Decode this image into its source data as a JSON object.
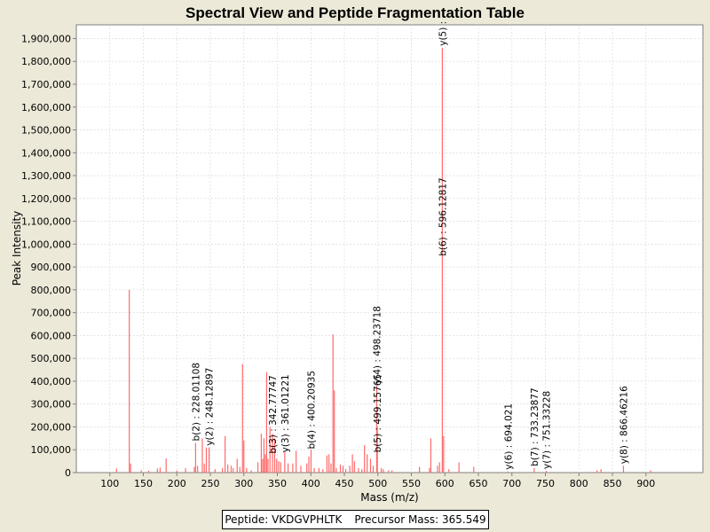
{
  "chart_data": {
    "type": "bar",
    "title": "Spectral View and Peptide Fragmentation Table",
    "xlabel": "Mass (m/z)",
    "ylabel": "Peak Intensity",
    "xlim": [
      50,
      985
    ],
    "ylim": [
      0,
      1960000
    ],
    "xticks": [
      100,
      150,
      200,
      250,
      300,
      350,
      400,
      450,
      500,
      550,
      600,
      650,
      700,
      750,
      800,
      850,
      900
    ],
    "yticks": [
      0,
      100000,
      200000,
      300000,
      400000,
      500000,
      600000,
      700000,
      800000,
      900000,
      1000000,
      1100000,
      1200000,
      1300000,
      1400000,
      1500000,
      1600000,
      1700000,
      1800000,
      1900000
    ],
    "ytick_labels": [
      "0",
      "100,000",
      "200,000",
      "300,000",
      "400,000",
      "500,000",
      "600,000",
      "700,000",
      "800,000",
      "900,000",
      "1,000,000",
      "1,100,000",
      "1,200,000",
      "1,300,000",
      "1,400,000",
      "1,500,000",
      "1,600,000",
      "1,700,000",
      "1,800,000",
      "1,900,000"
    ],
    "grid": true,
    "color": "#ff6a6a",
    "peaks": [
      {
        "mz": 110,
        "intensity": 18000
      },
      {
        "mz": 129,
        "intensity": 800000
      },
      {
        "mz": 131,
        "intensity": 40000
      },
      {
        "mz": 147,
        "intensity": 10000
      },
      {
        "mz": 158,
        "intensity": 8000
      },
      {
        "mz": 171,
        "intensity": 18000
      },
      {
        "mz": 175,
        "intensity": 22000
      },
      {
        "mz": 184,
        "intensity": 62000
      },
      {
        "mz": 200,
        "intensity": 9000
      },
      {
        "mz": 213,
        "intensity": 20000
      },
      {
        "mz": 226,
        "intensity": 25000
      },
      {
        "mz": 228.01,
        "intensity": 130000
      },
      {
        "mz": 231,
        "intensity": 30000
      },
      {
        "mz": 238,
        "intensity": 150000
      },
      {
        "mz": 241,
        "intensity": 40000
      },
      {
        "mz": 244,
        "intensity": 110000
      },
      {
        "mz": 248.13,
        "intensity": 110000
      },
      {
        "mz": 257,
        "intensity": 15000
      },
      {
        "mz": 268,
        "intensity": 20000
      },
      {
        "mz": 272,
        "intensity": 160000
      },
      {
        "mz": 276,
        "intensity": 35000
      },
      {
        "mz": 281,
        "intensity": 30000
      },
      {
        "mz": 284,
        "intensity": 20000
      },
      {
        "mz": 290,
        "intensity": 60000
      },
      {
        "mz": 294,
        "intensity": 25000
      },
      {
        "mz": 298,
        "intensity": 475000
      },
      {
        "mz": 300,
        "intensity": 140000
      },
      {
        "mz": 304,
        "intensity": 20000
      },
      {
        "mz": 311,
        "intensity": 10000
      },
      {
        "mz": 321,
        "intensity": 45000
      },
      {
        "mz": 326,
        "intensity": 170000
      },
      {
        "mz": 328,
        "intensity": 60000
      },
      {
        "mz": 330,
        "intensity": 150000
      },
      {
        "mz": 332,
        "intensity": 80000
      },
      {
        "mz": 334,
        "intensity": 440000
      },
      {
        "mz": 336,
        "intensity": 60000
      },
      {
        "mz": 339,
        "intensity": 200000
      },
      {
        "mz": 342.78,
        "intensity": 170000
      },
      {
        "mz": 346,
        "intensity": 150000
      },
      {
        "mz": 349,
        "intensity": 60000
      },
      {
        "mz": 352,
        "intensity": 50000
      },
      {
        "mz": 355,
        "intensity": 45000
      },
      {
        "mz": 361.01,
        "intensity": 90000
      },
      {
        "mz": 366,
        "intensity": 40000
      },
      {
        "mz": 373,
        "intensity": 40000
      },
      {
        "mz": 378,
        "intensity": 95000
      },
      {
        "mz": 385,
        "intensity": 30000
      },
      {
        "mz": 394,
        "intensity": 40000
      },
      {
        "mz": 397,
        "intensity": 70000
      },
      {
        "mz": 400.21,
        "intensity": 100000
      },
      {
        "mz": 405,
        "intensity": 20000
      },
      {
        "mz": 412,
        "intensity": 20000
      },
      {
        "mz": 418,
        "intensity": 15000
      },
      {
        "mz": 424,
        "intensity": 75000
      },
      {
        "mz": 427,
        "intensity": 80000
      },
      {
        "mz": 430,
        "intensity": 40000
      },
      {
        "mz": 433,
        "intensity": 605000
      },
      {
        "mz": 435,
        "intensity": 360000
      },
      {
        "mz": 438,
        "intensity": 20000
      },
      {
        "mz": 444,
        "intensity": 35000
      },
      {
        "mz": 448,
        "intensity": 30000
      },
      {
        "mz": 452,
        "intensity": 15000
      },
      {
        "mz": 458,
        "intensity": 30000
      },
      {
        "mz": 462,
        "intensity": 80000
      },
      {
        "mz": 465,
        "intensity": 50000
      },
      {
        "mz": 471,
        "intensity": 20000
      },
      {
        "mz": 476,
        "intensity": 15000
      },
      {
        "mz": 480,
        "intensity": 120000
      },
      {
        "mz": 484,
        "intensity": 80000
      },
      {
        "mz": 489,
        "intensity": 60000
      },
      {
        "mz": 493,
        "intensity": 30000
      },
      {
        "mz": 498.24,
        "intensity": 380000
      },
      {
        "mz": 499.16,
        "intensity": 200000
      },
      {
        "mz": 505,
        "intensity": 20000
      },
      {
        "mz": 508,
        "intensity": 15000
      },
      {
        "mz": 516,
        "intensity": 10000
      },
      {
        "mz": 521,
        "intensity": 10000
      },
      {
        "mz": 562,
        "intensity": 25000
      },
      {
        "mz": 577,
        "intensity": 20000
      },
      {
        "mz": 579,
        "intensity": 150000
      },
      {
        "mz": 589,
        "intensity": 30000
      },
      {
        "mz": 592,
        "intensity": 45000
      },
      {
        "mz": 596.13,
        "intensity": 1860000
      },
      {
        "mz": 598,
        "intensity": 160000
      },
      {
        "mz": 606,
        "intensity": 15000
      },
      {
        "mz": 621,
        "intensity": 45000
      },
      {
        "mz": 643,
        "intensity": 25000
      },
      {
        "mz": 694.02,
        "intensity": 5000
      },
      {
        "mz": 733.24,
        "intensity": 20000
      },
      {
        "mz": 751.33,
        "intensity": 8000
      },
      {
        "mz": 827,
        "intensity": 10000
      },
      {
        "mz": 833,
        "intensity": 15000
      },
      {
        "mz": 866.46,
        "intensity": 30000
      },
      {
        "mz": 907,
        "intensity": 10000
      }
    ],
    "annotations": [
      {
        "text": "b(2) : 228.01108",
        "mz": 228.01,
        "anchor": 130000
      },
      {
        "text": "y(2) : 248.12897",
        "mz": 248.13,
        "anchor": 110000
      },
      {
        "text": "b(3) : 342.77747",
        "mz": 342.78,
        "anchor": 75000
      },
      {
        "text": "y(3) : 361.01221",
        "mz": 361.01,
        "anchor": 80000
      },
      {
        "text": "b(4) : 400.20935",
        "mz": 400.21,
        "anchor": 95000
      },
      {
        "text": "b(5) : 499.15765",
        "mz": 499.16,
        "anchor": 80000
      },
      {
        "text": "y(4) : 498.23718",
        "mz": 498.24,
        "anchor": 380000
      },
      {
        "text": "b(6) : 596.12817",
        "mz": 596.13,
        "anchor": 940000
      },
      {
        "text": "y(5) :",
        "mz": 596.13,
        "anchor": 1860000
      },
      {
        "text": "y(6) : 694.021",
        "mz": 694.02,
        "anchor": 5000
      },
      {
        "text": "b(7) : 733.23877",
        "mz": 733.24,
        "anchor": 20000
      },
      {
        "text": "y(7) : 751.33228",
        "mz": 751.33,
        "anchor": 8000
      },
      {
        "text": "y(8) : 866.46216",
        "mz": 866.46,
        "anchor": 30000
      }
    ]
  },
  "footer": {
    "peptide": "Peptide: VKDGVPHLTK",
    "precursor": "Precursor Mass: 365.549"
  }
}
